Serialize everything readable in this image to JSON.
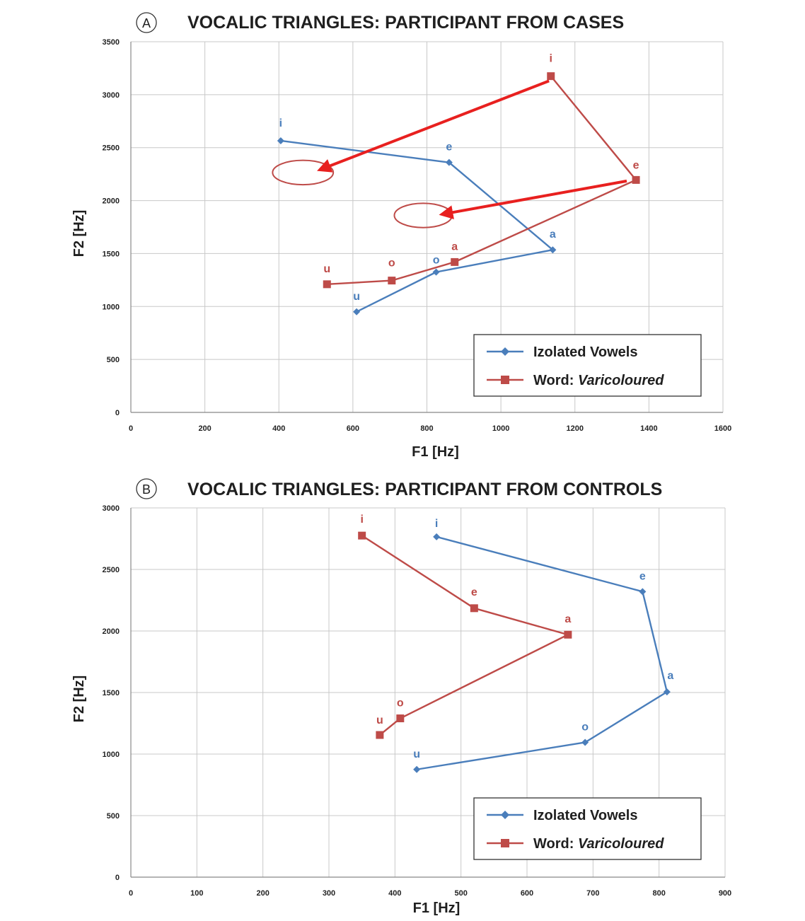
{
  "colors": {
    "isolated": "#4a7ebb",
    "word": "#be4b48",
    "arrow": "#e8201f",
    "grid": "#c8c8c8",
    "axis": "#888888"
  },
  "legend": {
    "isolated_label": "Izolated Vowels",
    "word_prefix": "Word: ",
    "word_italic": "Varicoloured"
  },
  "chart_data": [
    {
      "type": "line",
      "panel_letter": "A",
      "title": "VOCALIC TRIANGLES: PARTICIPANT FROM CASES",
      "xlabel": "F1 [Hz]",
      "ylabel": "F2 [Hz]",
      "xlim": [
        0,
        1600
      ],
      "ylim": [
        0,
        3500
      ],
      "xticks": [
        0,
        200,
        400,
        600,
        800,
        1000,
        1200,
        1400,
        1600
      ],
      "yticks": [
        0,
        500,
        1000,
        1500,
        2000,
        2500,
        3000,
        3500
      ],
      "grid": true,
      "legend_position": "bottom-right",
      "series": [
        {
          "name": "Izolated Vowels",
          "marker": "diamond",
          "points": [
            {
              "label": "i",
              "x": 405,
              "y": 2565
            },
            {
              "label": "e",
              "x": 860,
              "y": 2360
            },
            {
              "label": "a",
              "x": 1140,
              "y": 1535
            },
            {
              "label": "o",
              "x": 825,
              "y": 1325
            },
            {
              "label": "u",
              "x": 610,
              "y": 950
            }
          ]
        },
        {
          "name": "Word: Varicoloured",
          "marker": "square",
          "points": [
            {
              "label": "i",
              "x": 1135,
              "y": 3175
            },
            {
              "label": "e",
              "x": 1365,
              "y": 2195
            },
            {
              "label": "a",
              "x": 875,
              "y": 1420
            },
            {
              "label": "o",
              "x": 705,
              "y": 1245
            },
            {
              "label": "u",
              "x": 530,
              "y": 1210
            }
          ]
        }
      ],
      "annotations": {
        "arrows": [
          {
            "from": [
              1130,
              3130
            ],
            "to": [
              510,
              2290
            ]
          },
          {
            "from": [
              1340,
              2185
            ],
            "to": [
              840,
              1870
            ]
          }
        ],
        "ellipses": [
          {
            "cx": 465,
            "cy": 2265,
            "rx": 82,
            "ry": 115
          },
          {
            "cx": 790,
            "cy": 1860,
            "rx": 78,
            "ry": 115
          }
        ]
      }
    },
    {
      "type": "line",
      "panel_letter": "B",
      "title": "VOCALIC TRIANGLES: PARTICIPANT FROM CONTROLS",
      "xlabel": "F1 [Hz]",
      "ylabel": "F2 [Hz]",
      "xlim": [
        0,
        900
      ],
      "ylim": [
        0,
        3000
      ],
      "xticks": [
        0,
        100,
        200,
        300,
        400,
        500,
        600,
        700,
        800,
        900
      ],
      "yticks": [
        0,
        500,
        1000,
        1500,
        2000,
        2500,
        3000
      ],
      "grid": true,
      "legend_position": "bottom-right",
      "series": [
        {
          "name": "Izolated Vowels",
          "marker": "diamond",
          "points": [
            {
              "label": "i",
              "x": 463,
              "y": 2765
            },
            {
              "label": "e",
              "x": 775,
              "y": 2320
            },
            {
              "label": "a",
              "x": 812,
              "y": 1505
            },
            {
              "label": "o",
              "x": 688,
              "y": 1095
            },
            {
              "label": "u",
              "x": 433,
              "y": 875
            }
          ]
        },
        {
          "name": "Word: Varicoloured",
          "marker": "square",
          "points": [
            {
              "label": "i",
              "x": 350,
              "y": 2775
            },
            {
              "label": "e",
              "x": 520,
              "y": 2185
            },
            {
              "label": "a",
              "x": 662,
              "y": 1970
            },
            {
              "label": "o",
              "x": 408,
              "y": 1290
            },
            {
              "label": "u",
              "x": 377,
              "y": 1155
            }
          ]
        }
      ]
    }
  ]
}
